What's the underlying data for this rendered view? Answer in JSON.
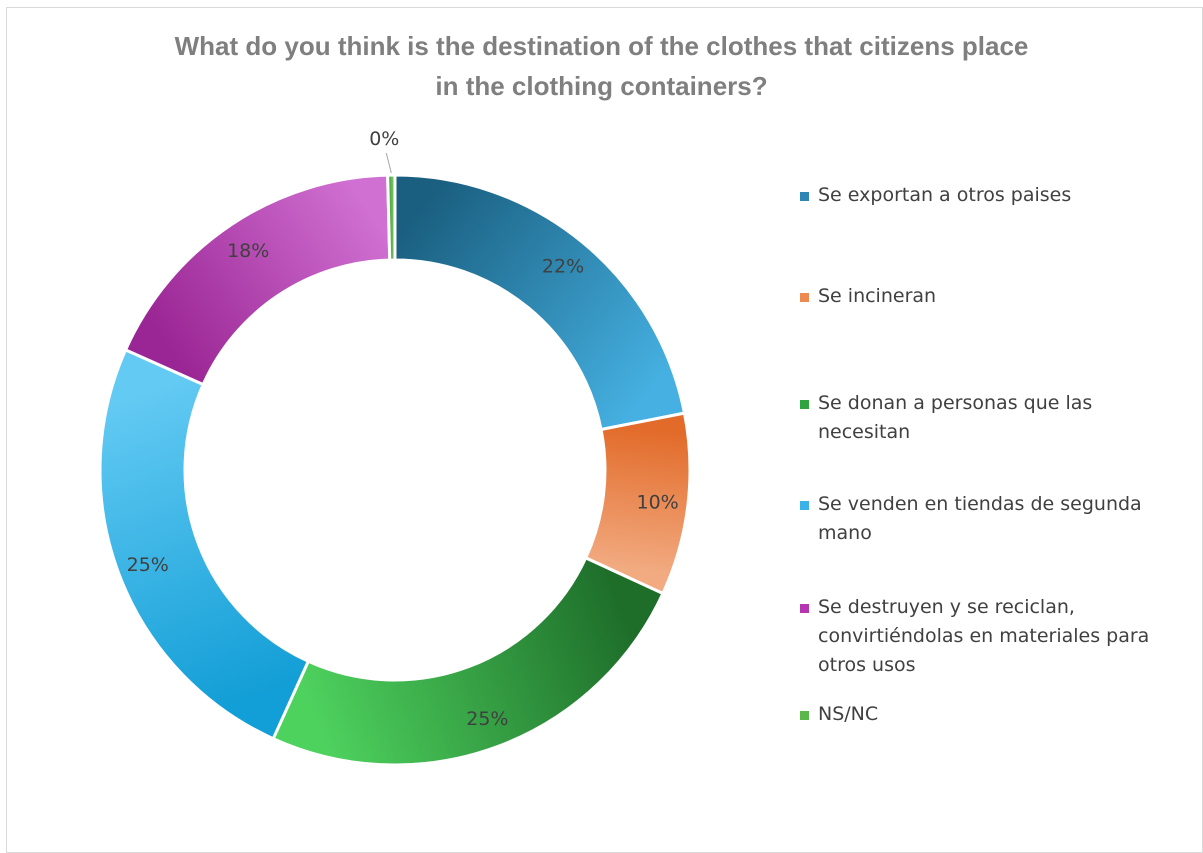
{
  "chart_data": {
    "type": "pie",
    "variant": "donut",
    "title": "What do you think is the destination of the clothes that citizens place in the clothing containers?",
    "title_lines": [
      "What do you think is the destination of the clothes that citizens place",
      "in the clothing containers?"
    ],
    "legend_position": "right",
    "slices": [
      {
        "label": "Se exportan a otros paises",
        "value": 22,
        "display": "22%",
        "color": "#2F86B5",
        "color_light": "#45B0E1",
        "color_dark": "#1A5F80"
      },
      {
        "label": "Se incineran",
        "value": 10,
        "display": "10%",
        "color": "#EE8A50",
        "color_light": "#F2AA80",
        "color_dark": "#E26B2A"
      },
      {
        "label": "Se donan a personas que las necesitan",
        "value": 25,
        "display": "25%",
        "color": "#2FA33E",
        "color_light": "#4ED25E",
        "color_dark": "#1E6E2A"
      },
      {
        "label": "Se venden en tiendas de segunda mano",
        "value": 25,
        "display": "25%",
        "color": "#3BB3E8",
        "color_light": "#63CAF3",
        "color_dark": "#129ED6"
      },
      {
        "label": "Se destruyen y se reciclan, convirtiéndolas en materiales para otros usos",
        "value": 18,
        "display": "18%",
        "color": "#B536B0",
        "color_light": "#D070D2",
        "color_dark": "#9A2594"
      },
      {
        "label": "NS/NC",
        "value": 0.4,
        "display": "0%",
        "color": "#5BB74A",
        "color_light": "#7FCF6C",
        "color_dark": "#46A03A"
      }
    ],
    "legend_lines": [
      [
        "Se exportan a otros paises"
      ],
      [
        "Se incineran"
      ],
      [
        "Se donan a personas que las",
        "necesitan"
      ],
      [
        "Se venden en tiendas de segunda",
        "mano"
      ],
      [
        "Se destruyen y se reciclan,",
        "convirtiéndolas en materiales para",
        "otros usos"
      ],
      [
        "NS/NC"
      ]
    ]
  }
}
